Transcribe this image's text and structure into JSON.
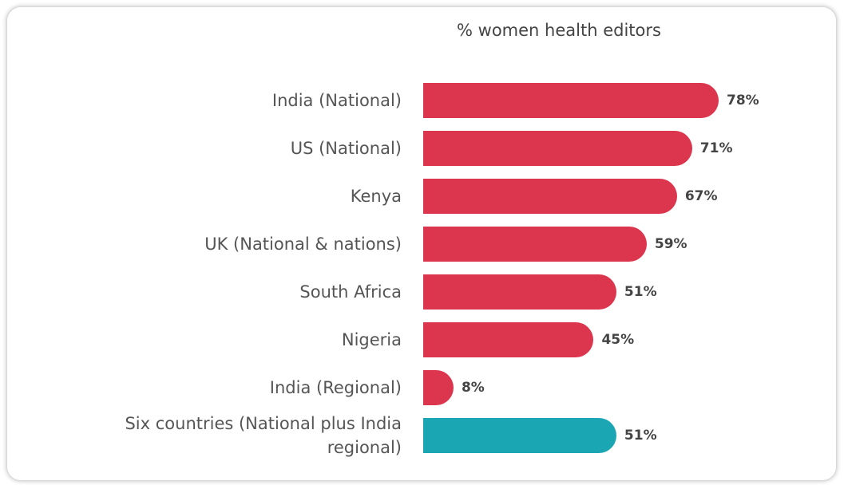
{
  "chart_data": {
    "type": "bar",
    "orientation": "horizontal",
    "title": "% women health editors",
    "categories": [
      "India (National)",
      "US (National)",
      "Kenya",
      "UK (National & nations)",
      "South Africa",
      "Nigeria",
      "India (Regional)",
      "Six countries (National plus India regional)"
    ],
    "values": [
      78,
      71,
      67,
      59,
      51,
      45,
      8,
      51
    ],
    "value_labels": [
      "78%",
      "71%",
      "67%",
      "59%",
      "51%",
      "45%",
      "8%",
      "51%"
    ],
    "colors": [
      "#dc364f",
      "#dc364f",
      "#dc364f",
      "#dc364f",
      "#dc364f",
      "#dc364f",
      "#dc364f",
      "#1aa7b3"
    ]
  }
}
